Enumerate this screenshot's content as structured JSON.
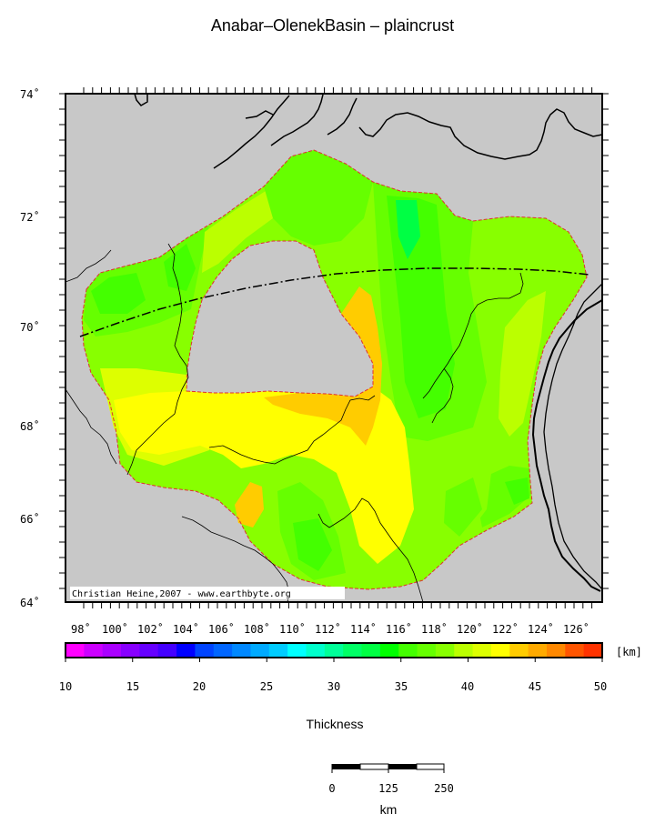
{
  "title": "Anabar–OlenekBasin – plaincrust",
  "map": {
    "lat_labels": [
      "74˚",
      "72˚",
      "70˚",
      "68˚",
      "66˚",
      "64˚"
    ],
    "lon_labels": [
      "98˚",
      "100˚",
      "102˚",
      "104˚",
      "106˚",
      "108˚",
      "110˚",
      "112˚",
      "114˚",
      "116˚",
      "118˚",
      "120˚",
      "122˚",
      "124˚",
      "126˚"
    ],
    "credit": "Christian Heine,2007 - www.earthbyte.org",
    "land_color": "#c8c8c8"
  },
  "colorbar": {
    "unit": "[km]",
    "tick_labels": [
      "10",
      "15",
      "20",
      "25",
      "30",
      "35",
      "40",
      "45",
      "50"
    ],
    "label": "Thickness",
    "colors": [
      "#ff00ff",
      "#cc00ff",
      "#aa00ff",
      "#8800ff",
      "#6600ff",
      "#4400ff",
      "#0000ff",
      "#0044ff",
      "#0066ff",
      "#0088ff",
      "#00aaff",
      "#00ccff",
      "#00ffff",
      "#00ffcc",
      "#00ff99",
      "#00ff66",
      "#00ff44",
      "#00ff00",
      "#44ff00",
      "#66ff00",
      "#88ff00",
      "#bbff00",
      "#ddff00",
      "#ffff00",
      "#ffcc00",
      "#ffaa00",
      "#ff8800",
      "#ff5500",
      "#ff3300"
    ]
  },
  "scalebar": {
    "ticks": [
      "0",
      "125",
      "250"
    ],
    "unit": "km"
  }
}
